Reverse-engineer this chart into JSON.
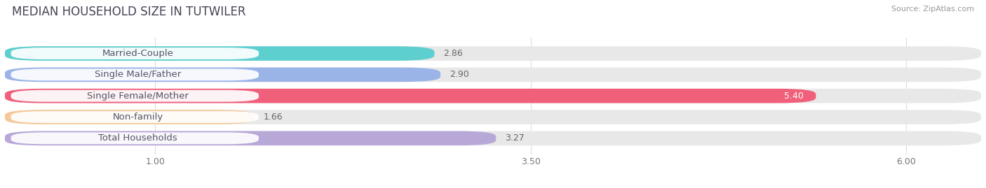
{
  "title": "MEDIAN HOUSEHOLD SIZE IN TUTWILER",
  "source": "Source: ZipAtlas.com",
  "categories": [
    "Married-Couple",
    "Single Male/Father",
    "Single Female/Mother",
    "Non-family",
    "Total Households"
  ],
  "values": [
    2.86,
    2.9,
    5.4,
    1.66,
    3.27
  ],
  "bar_colors": [
    "#5ecfcf",
    "#9ab4e8",
    "#f0607a",
    "#f5c89a",
    "#b8a8d8"
  ],
  "bg_bar_color": "#e8e8e8",
  "xlim_data": [
    0.0,
    6.0
  ],
  "x_axis_min": 1.0,
  "x_axis_max": 6.0,
  "xticks": [
    1.0,
    3.5,
    6.0
  ],
  "xtick_labels": [
    "1.00",
    "3.50",
    "6.00"
  ],
  "background_color": "#ffffff",
  "title_fontsize": 12,
  "label_fontsize": 9.5,
  "value_fontsize": 9,
  "bar_height": 0.68,
  "pill_color": "#ffffff",
  "label_text_color": "#555566"
}
